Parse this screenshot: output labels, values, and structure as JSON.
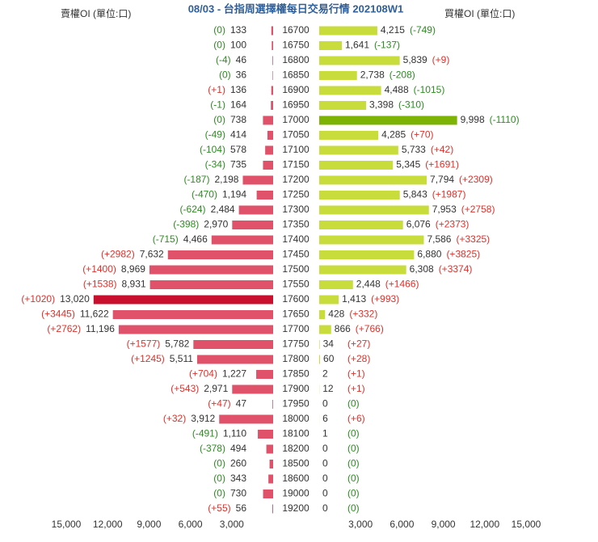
{
  "chart_data": {
    "type": "butterfly-bar",
    "title": "08/03 - 台指周選擇權每日交易行情 202108W1",
    "categories": [
      "16700",
      "16750",
      "16800",
      "16850",
      "16900",
      "16950",
      "17000",
      "17050",
      "17100",
      "17150",
      "17200",
      "17250",
      "17300",
      "17350",
      "17400",
      "17450",
      "17500",
      "17550",
      "17600",
      "17650",
      "17700",
      "17750",
      "17800",
      "17850",
      "17900",
      "17950",
      "18000",
      "18100",
      "18200",
      "18500",
      "18600",
      "19000",
      "19200"
    ],
    "xlim": [
      0,
      15000
    ],
    "xticks": [
      {
        "value": 3000,
        "label": "3,000"
      },
      {
        "value": 6000,
        "label": "6,000"
      },
      {
        "value": 9000,
        "label": "9,000"
      },
      {
        "value": 12000,
        "label": "12,000"
      },
      {
        "value": 15000,
        "label": "15,000"
      }
    ],
    "change_colors": {
      "positive": "#e0302a",
      "other": "#2e8b22"
    },
    "series": [
      {
        "name": "賣權OI (單位:口)",
        "side": "left",
        "color": "#e0516a",
        "highlight_color": "#c8102e",
        "values": [
          133,
          100,
          46,
          36,
          136,
          164,
          738,
          414,
          578,
          735,
          2198,
          1194,
          2484,
          2970,
          4466,
          7632,
          8969,
          8931,
          13020,
          11622,
          11196,
          5782,
          5511,
          1227,
          2971,
          47,
          3912,
          1110,
          494,
          260,
          343,
          730,
          56
        ],
        "value_labels": [
          "133",
          "100",
          "46",
          "36",
          "136",
          "164",
          "738",
          "414",
          "578",
          "735",
          "2,198",
          "1,194",
          "2,484",
          "2,970",
          "4,466",
          "7,632",
          "8,969",
          "8,931",
          "13,020",
          "11,622",
          "11,196",
          "5,782",
          "5,511",
          "1,227",
          "2,971",
          "47",
          "3,912",
          "1,110",
          "494",
          "260",
          "343",
          "730",
          "56"
        ],
        "changes": [
          0,
          0,
          -4,
          0,
          1,
          -1,
          0,
          -49,
          -104,
          -34,
          -187,
          -470,
          -624,
          -398,
          -715,
          2982,
          1400,
          1538,
          1020,
          3445,
          2762,
          1577,
          1245,
          704,
          543,
          47,
          32,
          -491,
          -378,
          0,
          0,
          0,
          55
        ],
        "change_labels": [
          "(0)",
          "(0)",
          "(-4)",
          "(0)",
          "(+1)",
          "(-1)",
          "(0)",
          "(-49)",
          "(-104)",
          "(-34)",
          "(-187)",
          "(-470)",
          "(-624)",
          "(-398)",
          "(-715)",
          "(+2982)",
          "(+1400)",
          "(+1538)",
          "(+1020)",
          "(+3445)",
          "(+2762)",
          "(+1577)",
          "(+1245)",
          "(+704)",
          "(+543)",
          "(+47)",
          "(+32)",
          "(-491)",
          "(-378)",
          "(0)",
          "(0)",
          "(0)",
          "(+55)"
        ]
      },
      {
        "name": "買權OI (單位:口)",
        "side": "right",
        "color": "#c8dc3c",
        "highlight_color": "#7cb305",
        "values": [
          4215,
          1641,
          5839,
          2738,
          4488,
          3398,
          9998,
          4285,
          5733,
          5345,
          7794,
          5843,
          7953,
          6076,
          7586,
          6880,
          6308,
          2448,
          1413,
          428,
          866,
          34,
          60,
          2,
          12,
          0,
          6,
          1,
          0,
          0,
          0,
          0,
          0
        ],
        "value_labels": [
          "4,215",
          "1,641",
          "5,839",
          "2,738",
          "4,488",
          "3,398",
          "9,998",
          "4,285",
          "5,733",
          "5,345",
          "7,794",
          "5,843",
          "7,953",
          "6,076",
          "7,586",
          "6,880",
          "6,308",
          "2,448",
          "1,413",
          "428",
          "866",
          "34",
          "60",
          "2",
          "12",
          "0",
          "6",
          "1",
          "0",
          "0",
          "0",
          "0",
          "0"
        ],
        "changes": [
          -749,
          -137,
          9,
          -208,
          -1015,
          -310,
          -1110,
          70,
          42,
          1691,
          2309,
          1987,
          2758,
          2373,
          3325,
          3825,
          3374,
          1466,
          993,
          332,
          766,
          27,
          28,
          1,
          1,
          0,
          6,
          0,
          0,
          0,
          0,
          0,
          0
        ],
        "change_labels": [
          "(-749)",
          "(-137)",
          "(+9)",
          "(-208)",
          "(-1015)",
          "(-310)",
          "(-1110)",
          "(+70)",
          "(+42)",
          "(+1691)",
          "(+2309)",
          "(+1987)",
          "(+2758)",
          "(+2373)",
          "(+3325)",
          "(+3825)",
          "(+3374)",
          "(+1466)",
          "(+993)",
          "(+332)",
          "(+766)",
          "(+27)",
          "(+28)",
          "(+1)",
          "(+1)",
          "(0)",
          "(+6)",
          "(0)",
          "(0)",
          "(0)",
          "(0)",
          "(0)",
          "(0)"
        ]
      }
    ]
  }
}
